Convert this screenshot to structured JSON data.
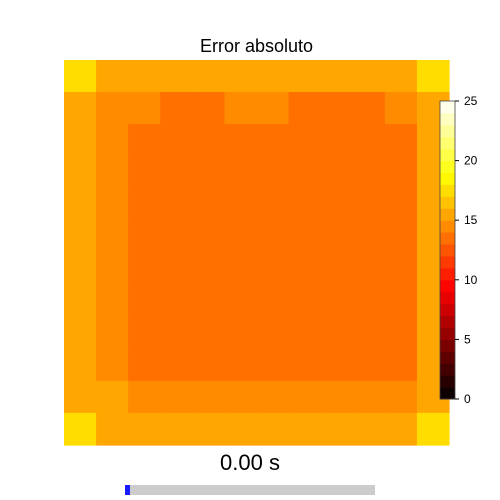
{
  "chart_data": {
    "type": "heatmap",
    "title": "Error absoluto",
    "grid_rows": 12,
    "grid_cols": 12,
    "values": [
      [
        17.5,
        15.3,
        15.3,
        15.3,
        15.3,
        15.3,
        15.3,
        15.3,
        15.3,
        15.3,
        15.3,
        17.5
      ],
      [
        15.3,
        14.5,
        14.5,
        13.8,
        13.8,
        14.5,
        14.5,
        13.8,
        13.8,
        13.8,
        14.5,
        15.3
      ],
      [
        15.3,
        14.5,
        13.5,
        13.5,
        13.5,
        13.5,
        13.5,
        13.5,
        13.5,
        13.5,
        13.8,
        15.3
      ],
      [
        15.3,
        14.5,
        13.5,
        13.5,
        13.5,
        13.5,
        13.5,
        13.5,
        13.5,
        13.5,
        13.8,
        15.3
      ],
      [
        15.3,
        14.5,
        13.5,
        13.5,
        13.5,
        13.5,
        13.5,
        13.5,
        13.5,
        13.5,
        13.8,
        15.3
      ],
      [
        15.3,
        14.5,
        13.5,
        13.5,
        13.5,
        13.5,
        13.5,
        13.5,
        13.5,
        13.5,
        13.8,
        15.3
      ],
      [
        15.3,
        14.5,
        13.5,
        13.5,
        13.5,
        13.5,
        13.5,
        13.5,
        13.5,
        13.5,
        13.8,
        15.3
      ],
      [
        15.3,
        14.5,
        13.5,
        13.5,
        13.5,
        13.5,
        13.5,
        13.5,
        13.5,
        13.5,
        13.8,
        15.3
      ],
      [
        15.3,
        14.5,
        13.5,
        13.5,
        13.5,
        13.5,
        13.5,
        13.5,
        13.5,
        13.5,
        13.8,
        15.3
      ],
      [
        15.3,
        14.5,
        13.8,
        13.8,
        13.8,
        13.8,
        13.8,
        13.8,
        13.8,
        13.8,
        13.8,
        15.3
      ],
      [
        15.3,
        15.0,
        14.5,
        14.5,
        14.5,
        14.5,
        14.5,
        14.5,
        14.5,
        14.5,
        14.5,
        15.3
      ],
      [
        17.5,
        15.3,
        15.3,
        15.3,
        15.3,
        15.3,
        15.3,
        15.3,
        15.3,
        15.3,
        15.3,
        17.5
      ]
    ],
    "colorbar": {
      "range": [
        0,
        25
      ],
      "ticks": [
        0,
        5,
        10,
        15,
        20,
        25
      ],
      "levels": 25,
      "colormap": "hot",
      "colormap_stops": [
        "#000000",
        "#ff0000",
        "#ffff00",
        "#ffffff"
      ]
    },
    "axes_visible": false
  },
  "animation": {
    "time_label": "0.00 s",
    "progress": 0.02,
    "track_color": "#cccccc",
    "fill_color": "#1a1aff"
  }
}
